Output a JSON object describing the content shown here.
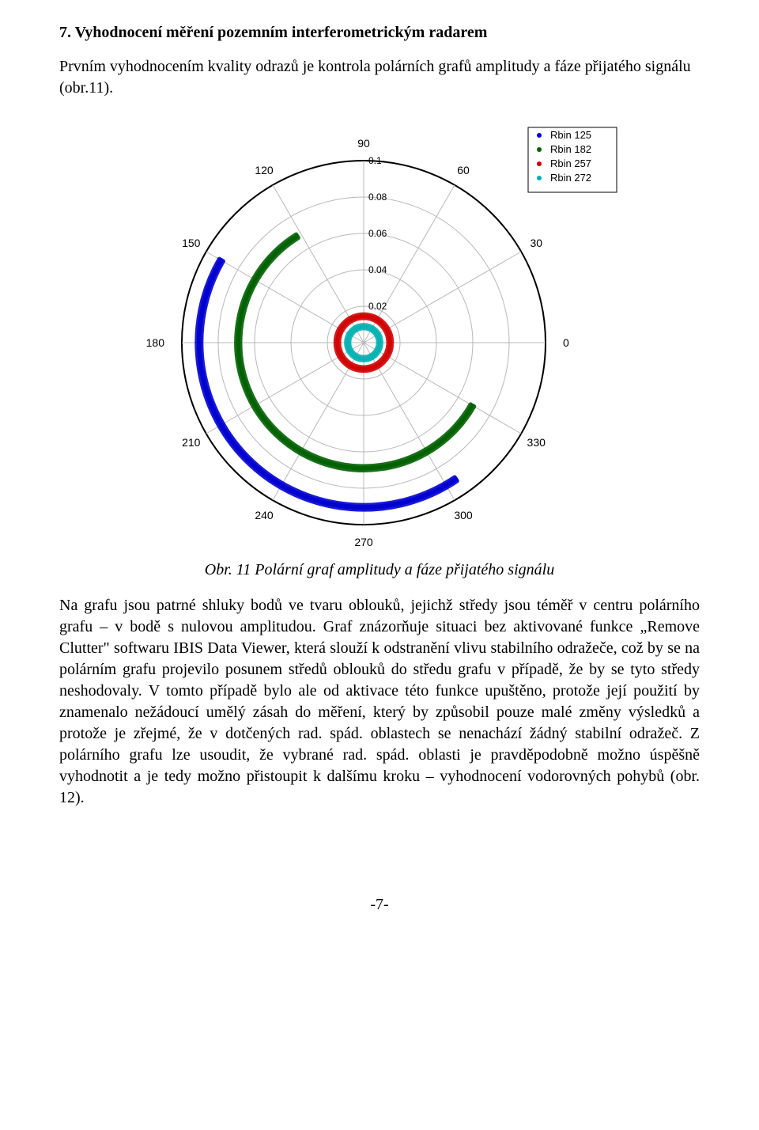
{
  "heading": "7. Vyhodnocení měření pozemním interferometrickým radarem",
  "intro": "Prvním vyhodnocením kvality odrazů je kontrola polárních grafů amplitudy a fáze přijatého signálu (obr.11).",
  "caption": "Obr. 11 Polární graf amplitudy a fáze přijatého signálu",
  "body": "Na grafu jsou patrné shluky bodů ve tvaru oblouků, jejichž středy jsou téměř v centru polárního grafu – v bodě s nulovou amplitudou. Graf znázorňuje situaci bez aktivované funkce „Remove Clutter\" softwaru IBIS Data Viewer, která slouží k odstranění vlivu stabilního odražeče, což by se na polárním grafu projevilo posunem středů oblouků do středu grafu v případě, že by se tyto středy neshodovaly. V tomto případě bylo ale od aktivace této funkce upuštěno, protože její použití by znamenalo nežádoucí umělý zásah do měření, který by způsobil pouze malé změny výsledků a protože je zřejmé, že v dotčených rad. spád. oblastech se nenachází žádný stabilní odražeč. Z polárního grafu lze usoudit, že vybrané rad. spád. oblasti je pravděpodobně možno úspěšně vyhodnotit a je tedy možno přistoupit k dalšímu kroku – vyhodnocení vodorovných pohybů (obr. 12).",
  "pageNumber": "-7-",
  "polarChart": {
    "type": "polar-scatter",
    "background_color": "#ffffff",
    "grid_color": "#b8b8b8",
    "outer_color": "#000000",
    "tick_font_size": 12,
    "angle_font_size": 14,
    "radial_max": 0.1,
    "radial_ticks": [
      0.02,
      0.04,
      0.06,
      0.08,
      0.1
    ],
    "radial_tick_labels": [
      "0.02",
      "0.04",
      "0.06",
      "0.08",
      "0.1"
    ],
    "angle_labels": [
      {
        "deg": 0,
        "text": "0"
      },
      {
        "deg": 30,
        "text": "30"
      },
      {
        "deg": 60,
        "text": "60"
      },
      {
        "deg": 90,
        "text": "90"
      },
      {
        "deg": 120,
        "text": "120"
      },
      {
        "deg": 150,
        "text": "150"
      },
      {
        "deg": 180,
        "text": "180"
      },
      {
        "deg": 210,
        "text": "210"
      },
      {
        "deg": 240,
        "text": "240"
      },
      {
        "deg": 270,
        "text": "270"
      },
      {
        "deg": 300,
        "text": "300"
      },
      {
        "deg": 330,
        "text": "330"
      }
    ],
    "legend": {
      "border_color": "#000000",
      "bg_color": "#ffffff",
      "items": [
        {
          "label": "Rbin 125",
          "color": "#0000d0",
          "marker": "dot"
        },
        {
          "label": "Rbin 182",
          "color": "#006000",
          "marker": "dot"
        },
        {
          "label": "Rbin 257",
          "color": "#d00000",
          "marker": "dot"
        },
        {
          "label": "Rbin 272",
          "color": "#00b0b0",
          "marker": "dot"
        }
      ]
    },
    "series": [
      {
        "name": "Rbin 125",
        "color": "#0000d0",
        "stroke_width": 10,
        "arc": {
          "radius": 0.0905,
          "start_deg": 150,
          "end_deg": 304
        }
      },
      {
        "name": "Rbin 182",
        "color": "#006000",
        "stroke_width": 9,
        "arc": {
          "radius": 0.069,
          "start_deg": 122,
          "end_deg": 330
        }
      },
      {
        "name": "Rbin 257",
        "color": "#d00000",
        "stroke_width": 8,
        "arc": {
          "radius": 0.0145,
          "start_deg": 0,
          "end_deg": 360
        }
      },
      {
        "name": "Rbin 272",
        "color": "#00b0b0",
        "stroke_width": 7,
        "arc": {
          "radius": 0.0088,
          "start_deg": 0,
          "end_deg": 360
        }
      }
    ]
  }
}
